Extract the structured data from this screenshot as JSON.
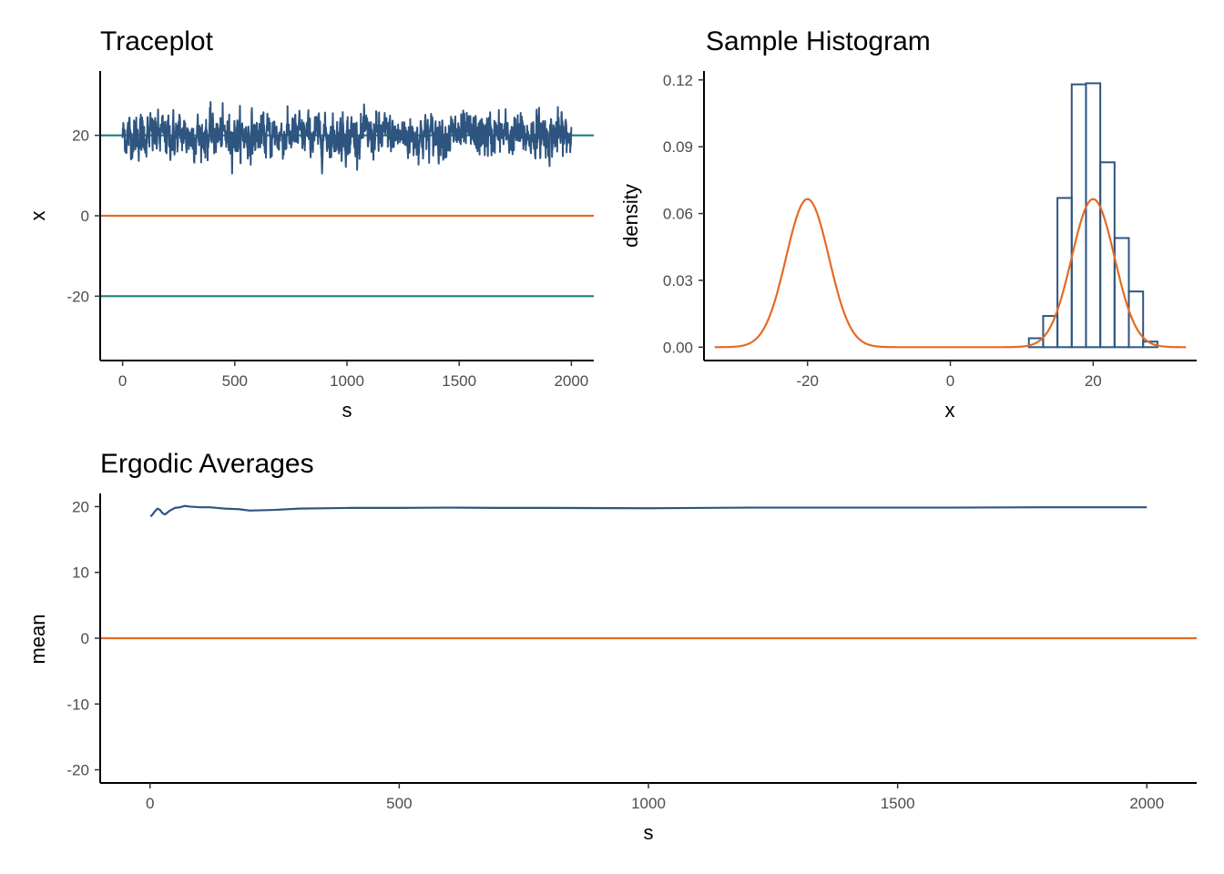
{
  "chart_data": [
    {
      "type": "line",
      "title": "Traceplot",
      "xlabel": "s",
      "ylabel": "x",
      "xlim": [
        -100,
        2100
      ],
      "ylim": [
        -36,
        36
      ],
      "xticks": [
        "0",
        "500",
        "1000",
        "1500",
        "2000"
      ],
      "yticks": [
        "-20",
        "0",
        "20"
      ],
      "grid": false,
      "reference_lines": [
        {
          "y": 20,
          "color": "#1b7f79"
        },
        {
          "y": 0,
          "color": "#e36b24"
        },
        {
          "y": -20,
          "color": "#1b7f79"
        }
      ],
      "series": [
        {
          "color": "#2e5580",
          "description_values": {
            "s_range": [
              0,
              2000
            ],
            "mean": 20,
            "min": 10.5,
            "max": 28.5
          }
        }
      ]
    },
    {
      "type": "bar",
      "title": "Sample Histogram",
      "xlabel": "x",
      "ylabel": "density",
      "xlim": [
        -34.5,
        34.5
      ],
      "ylim": [
        -0.006,
        0.124
      ],
      "xticks": [
        "-20",
        "0",
        "20"
      ],
      "yticks": [
        "0.00",
        "0.03",
        "0.06",
        "0.09",
        "0.12"
      ],
      "grid": false,
      "bins": [
        {
          "x0": -33,
          "x1": 11,
          "density": 0.0
        },
        {
          "x0": 11,
          "x1": 13,
          "density": 0.004
        },
        {
          "x0": 13,
          "x1": 15,
          "density": 0.014
        },
        {
          "x0": 15,
          "x1": 17,
          "density": 0.067
        },
        {
          "x0": 17,
          "x1": 19,
          "density": 0.118
        },
        {
          "x0": 19,
          "x1": 21,
          "density": 0.1185
        },
        {
          "x0": 21,
          "x1": 23,
          "density": 0.083
        },
        {
          "x0": 23,
          "x1": 25,
          "density": 0.049
        },
        {
          "x0": 25,
          "x1": 27,
          "density": 0.025
        },
        {
          "x0": 27,
          "x1": 29,
          "density": 0.0025
        }
      ],
      "bar_color": "#2e5580",
      "density_curve": {
        "color": "#e36b24",
        "components": [
          {
            "mean": -20,
            "sd": 3,
            "weight": 0.5
          },
          {
            "mean": 20,
            "sd": 3,
            "weight": 0.5
          }
        ],
        "x_range": [
          -33,
          33
        ],
        "peak_density": 0.066
      }
    },
    {
      "type": "line",
      "title": "Ergodic Averages",
      "xlabel": "s",
      "ylabel": "mean",
      "xlim": [
        -100,
        2100
      ],
      "ylim": [
        -22,
        22
      ],
      "xticks": [
        "0",
        "500",
        "1000",
        "1500",
        "2000"
      ],
      "yticks": [
        "-20",
        "-10",
        "0",
        "10",
        "20"
      ],
      "grid": false,
      "reference_lines": [
        {
          "y": 0,
          "color": "#e36b24"
        }
      ],
      "series": [
        {
          "color": "#2e5580",
          "x": [
            1,
            5,
            10,
            15,
            20,
            25,
            30,
            40,
            50,
            60,
            70,
            80,
            100,
            120,
            150,
            180,
            200,
            250,
            300,
            400,
            500,
            600,
            700,
            800,
            1000,
            1200,
            1400,
            1600,
            1800,
            2000
          ],
          "y": [
            18.5,
            18.8,
            19.3,
            19.7,
            19.5,
            19.0,
            18.8,
            19.4,
            19.8,
            19.9,
            20.1,
            20.0,
            19.9,
            19.9,
            19.7,
            19.6,
            19.4,
            19.5,
            19.7,
            19.8,
            19.8,
            19.85,
            19.8,
            19.8,
            19.75,
            19.85,
            19.85,
            19.85,
            19.9,
            19.9
          ]
        }
      ]
    }
  ]
}
